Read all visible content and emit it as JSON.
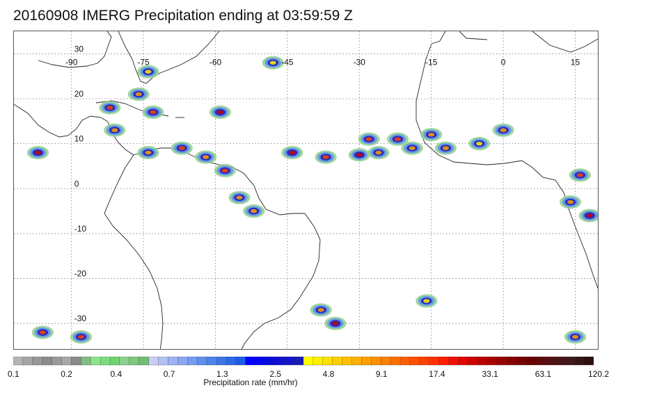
{
  "title": "20160908 IMERG Precipitation ending at 03:59:59 Z",
  "map": {
    "lon_min": -102,
    "lon_max": 20,
    "lat_min": -36,
    "lat_max": 35,
    "lon_ticks": [
      {
        "value": -90,
        "label": "-90"
      },
      {
        "value": -75,
        "label": "-75"
      },
      {
        "value": -60,
        "label": "-60"
      },
      {
        "value": -45,
        "label": "-45"
      },
      {
        "value": -30,
        "label": "-30"
      },
      {
        "value": -15,
        "label": "-15"
      },
      {
        "value": 0,
        "label": "0"
      },
      {
        "value": 15,
        "label": "15"
      }
    ],
    "lat_ticks": [
      {
        "value": 30,
        "label": "30"
      },
      {
        "value": 20,
        "label": "20"
      },
      {
        "value": 10,
        "label": "10"
      },
      {
        "value": 0,
        "label": "0"
      },
      {
        "value": -10,
        "label": "-10"
      },
      {
        "value": -20,
        "label": "-20"
      },
      {
        "value": -30,
        "label": "-30"
      }
    ],
    "grid": true,
    "precip_cells": [
      {
        "lon": -44,
        "lat": 8,
        "rate": 33
      },
      {
        "lon": -37,
        "lat": 7,
        "rate": 17
      },
      {
        "lon": -30,
        "lat": 7.5,
        "rate": 33
      },
      {
        "lon": -28,
        "lat": 11,
        "rate": 17
      },
      {
        "lon": -26,
        "lat": 8,
        "rate": 9
      },
      {
        "lon": -22,
        "lat": 11,
        "rate": 17
      },
      {
        "lon": -19,
        "lat": 9,
        "rate": 9
      },
      {
        "lon": -15,
        "lat": 12,
        "rate": 9
      },
      {
        "lon": -12,
        "lat": 9,
        "rate": 4.8
      },
      {
        "lon": -59,
        "lat": 17,
        "rate": 33
      },
      {
        "lon": -82,
        "lat": 18,
        "rate": 17
      },
      {
        "lon": -73,
        "lat": 17,
        "rate": 17
      },
      {
        "lon": -76,
        "lat": 21,
        "rate": 9
      },
      {
        "lon": -81,
        "lat": 13,
        "rate": 9
      },
      {
        "lon": -97,
        "lat": 8,
        "rate": 33
      },
      {
        "lon": -74,
        "lat": 8,
        "rate": 9
      },
      {
        "lon": -67,
        "lat": 9,
        "rate": 17
      },
      {
        "lon": -62,
        "lat": 7,
        "rate": 9
      },
      {
        "lon": -58,
        "lat": 4,
        "rate": 17
      },
      {
        "lon": -55,
        "lat": -2,
        "rate": 9
      },
      {
        "lon": -52,
        "lat": -5,
        "rate": 4.8
      },
      {
        "lon": -48,
        "lat": 28,
        "rate": 2.5
      },
      {
        "lon": -74,
        "lat": 26,
        "rate": 2.5
      },
      {
        "lon": -96,
        "lat": -32,
        "rate": 17
      },
      {
        "lon": -88,
        "lat": -33,
        "rate": 17
      },
      {
        "lon": -38,
        "lat": -27,
        "rate": 9
      },
      {
        "lon": -35,
        "lat": -30,
        "rate": 33
      },
      {
        "lon": 16,
        "lat": 3,
        "rate": 17
      },
      {
        "lon": 14,
        "lat": -3,
        "rate": 9
      },
      {
        "lon": 18,
        "lat": -6,
        "rate": 33
      },
      {
        "lon": 0,
        "lat": 13,
        "rate": 4.8
      },
      {
        "lon": -5,
        "lat": 10,
        "rate": 2.5
      },
      {
        "lon": -16,
        "lat": -25,
        "rate": 2.5
      },
      {
        "lon": 15,
        "lat": -33,
        "rate": 4.8
      }
    ]
  },
  "colorbar": {
    "title": "Precipitation rate (mm/hr)",
    "colors": [
      "#b4b4b4",
      "#a6a6a6",
      "#989898",
      "#8c8c8c",
      "#9a9a9a",
      "#a8a8a8",
      "#8a8a8a",
      "#7fbf7f",
      "#8ee38e",
      "#7ddc7d",
      "#6fd56f",
      "#8fcf8f",
      "#7fc77f",
      "#6fbf6f",
      "#c8ccf6",
      "#b3c0f4",
      "#9fb2f3",
      "#8aa8f2",
      "#779cef",
      "#5f8fee",
      "#4e83ea",
      "#3c76e8",
      "#2f69e6",
      "#1f5ce2",
      "#0000ff",
      "#0505f0",
      "#0a0ae0",
      "#1010d5",
      "#1515c8",
      "#1a1ab8",
      "#ffff00",
      "#fff000",
      "#ffe000",
      "#ffd000",
      "#ffc000",
      "#ffb000",
      "#ff9f00",
      "#ff8f00",
      "#ff7f00",
      "#ff6f00",
      "#ff5f00",
      "#ff4f00",
      "#ff3f00",
      "#ff2f00",
      "#ff1f00",
      "#f01000",
      "#e00800",
      "#cc0000",
      "#b80000",
      "#a80000",
      "#980000",
      "#880000",
      "#780000",
      "#6a0000",
      "#5e0a0a",
      "#541010",
      "#4a1414",
      "#421818",
      "#3a1414",
      "#2e0e0e"
    ],
    "labels": [
      {
        "index": 0,
        "text": "0.1"
      },
      {
        "index": 7.5,
        "text": "0.2"
      },
      {
        "index": 14.5,
        "text": "0.4"
      },
      {
        "index": 22,
        "text": "0.7"
      },
      {
        "index": 29.5,
        "text": "1.3"
      },
      {
        "index": 37,
        "text": "2.5"
      },
      {
        "index": 44.5,
        "text": "4.8"
      },
      {
        "index": 52,
        "text": "9.1"
      },
      {
        "index": 59.5,
        "text": "17.4"
      },
      {
        "index": 67,
        "text": "33.1"
      },
      {
        "index": 74.5,
        "text": "63.1"
      },
      {
        "index": 82,
        "text": "120.2"
      }
    ]
  }
}
